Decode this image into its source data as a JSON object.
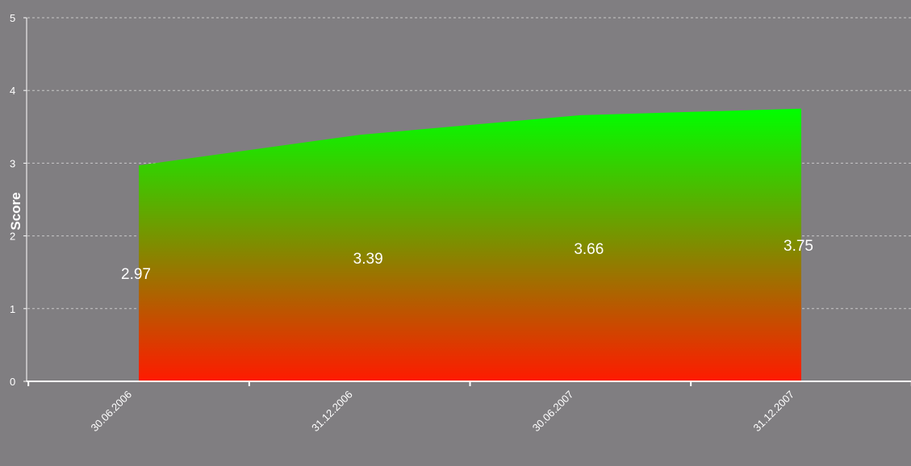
{
  "chart_data": {
    "type": "area",
    "title": "",
    "xlabel": "",
    "ylabel": "Score",
    "ylim": [
      0,
      5
    ],
    "y_ticks": [
      "0",
      "1",
      "2",
      "3",
      "4",
      "5"
    ],
    "categories": [
      "30.06.2006",
      "31.12.2006",
      "30.06.2007",
      "31.12.2007"
    ],
    "series": [
      {
        "values": [
          2.97,
          3.39,
          3.66,
          3.75
        ]
      }
    ],
    "data_labels": [
      "2.97",
      "3.39",
      "3.66",
      "3.75"
    ],
    "grid": "horizontal-dashed",
    "legend": "none",
    "colors": {
      "background": "#807e81",
      "fill_top": "#00ff00",
      "fill_bottom": "#ff1a00",
      "axis": "#ffffff",
      "grid": "#c8c8c8"
    }
  }
}
